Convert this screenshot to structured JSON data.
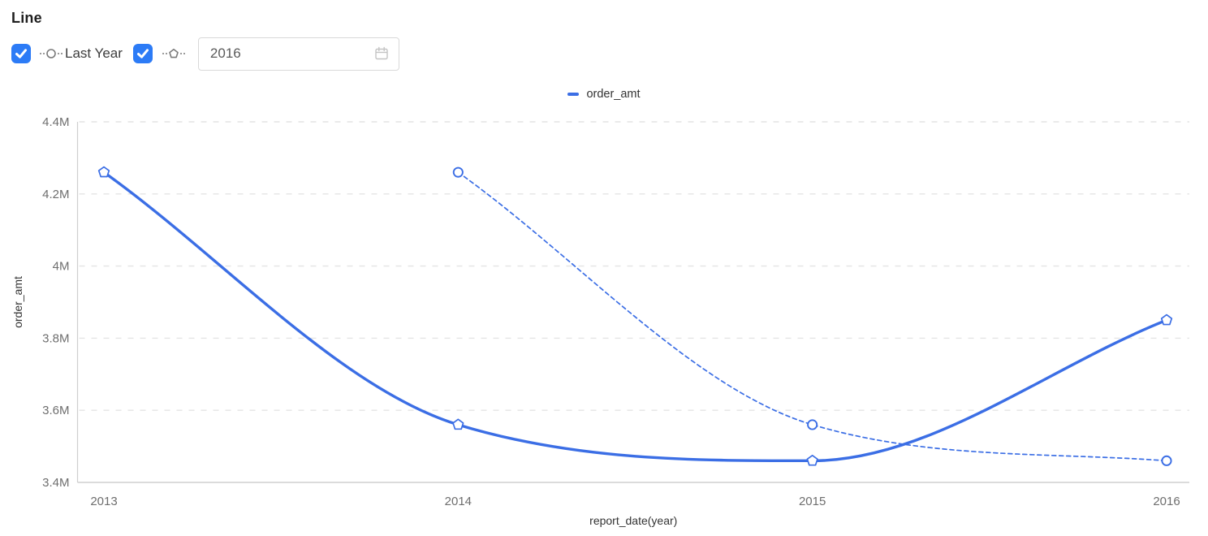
{
  "header": {
    "title": "Line",
    "controls": {
      "last_year_checkbox_checked": true,
      "last_year_label": "Last Year",
      "current_year_checkbox_checked": true,
      "year_input_value": "2016"
    }
  },
  "legend": {
    "position": "top-center",
    "items": [
      {
        "label": "order_amt",
        "color": "#3B6EE5"
      }
    ]
  },
  "colors": {
    "series_blue": "#3B6EE5",
    "checkbox_blue": "#2C7BF6",
    "axis_line": "#cfcfcf",
    "grid_line": "#e4e4e4",
    "tick_text": "#6e6e6e",
    "axis_name_text": "#333333",
    "glyph_gray": "#7a7a7a",
    "input_border": "#d9d9d9",
    "calendar_icon_gray": "#c4c4c4"
  },
  "chart_data": {
    "type": "line",
    "title": "",
    "categories": [
      "2013",
      "2014",
      "2015",
      "2016"
    ],
    "xlabel": "report_date(year)",
    "ylabel": "order_amt",
    "ylim": [
      3400000,
      4400000
    ],
    "yticks": [
      {
        "value": 3400000,
        "label": "3.4M"
      },
      {
        "value": 3600000,
        "label": "3.6M"
      },
      {
        "value": 3800000,
        "label": "3.8M"
      },
      {
        "value": 4000000,
        "label": "4M"
      },
      {
        "value": 4200000,
        "label": "4.2M"
      },
      {
        "value": 4400000,
        "label": "4.4M"
      }
    ],
    "grid": true,
    "legend_position": "top-center",
    "series": [
      {
        "name": "order_amt",
        "style": "solid",
        "marker": "pentagon",
        "x": [
          "2013",
          "2014",
          "2015",
          "2016"
        ],
        "values": [
          4260000,
          3560000,
          3460000,
          3850000
        ]
      },
      {
        "name": "Last Year",
        "style": "dashed",
        "marker": "circle",
        "x": [
          "2014",
          "2015",
          "2016"
        ],
        "values": [
          4260000,
          3560000,
          3460000
        ]
      }
    ]
  }
}
